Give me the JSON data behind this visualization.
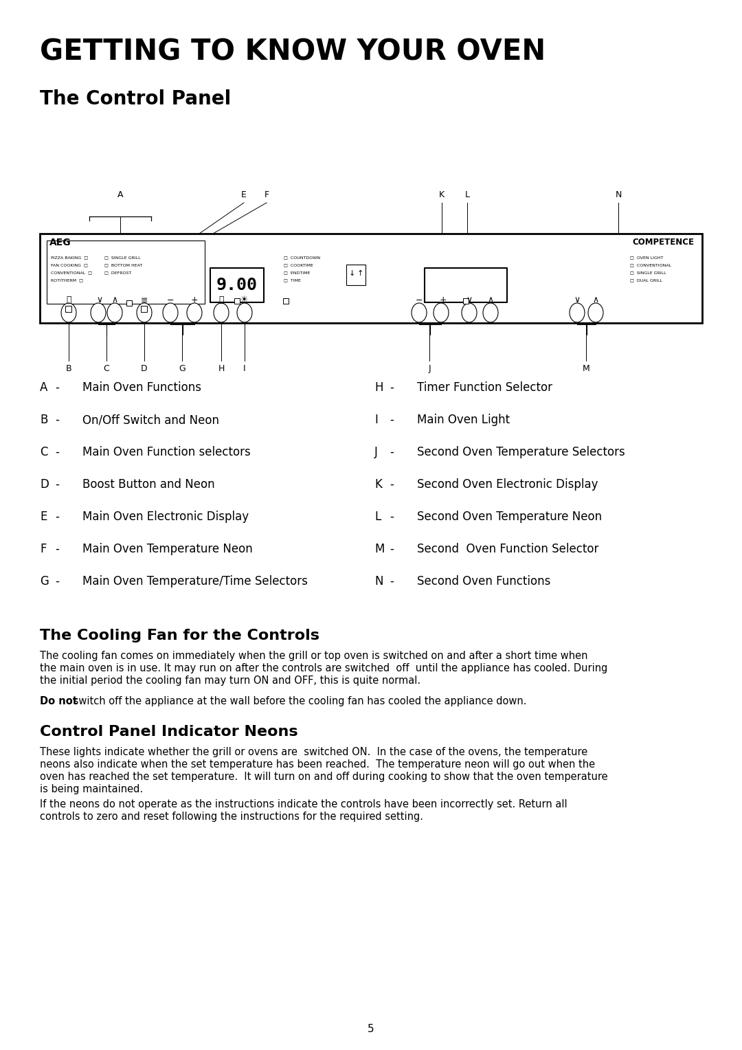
{
  "main_title": "GETTING TO KNOW YOUR OVEN",
  "subtitle": "The Control Panel",
  "bg_color": "#ffffff",
  "labels_left": [
    [
      "A",
      "-",
      "Main Oven Functions"
    ],
    [
      "B",
      "-",
      "On/Off Switch and Neon"
    ],
    [
      "C",
      "-",
      "Main Oven Function selectors"
    ],
    [
      "D",
      "-",
      "Boost Button and Neon"
    ],
    [
      "E",
      "-",
      "Main Oven Electronic Display"
    ],
    [
      "F",
      "-",
      "Main Oven Temperature Neon"
    ],
    [
      "G",
      "-",
      "Main Oven Temperature/Time Selectors"
    ]
  ],
  "labels_right": [
    [
      "H",
      "-",
      "Timer Function Selector"
    ],
    [
      "I",
      "-",
      "Main Oven Light"
    ],
    [
      "J",
      "-",
      "Second Oven Temperature Selectors"
    ],
    [
      "K",
      "-",
      "Second Oven Electronic Display"
    ],
    [
      "L",
      "-",
      "Second Oven Temperature Neon"
    ],
    [
      "M",
      "-",
      "Second  Oven Function Selector"
    ],
    [
      "N",
      "-",
      "Second Oven Functions"
    ]
  ],
  "section2_title": "The Cooling Fan for the Controls",
  "section2_body_lines": [
    "The cooling fan comes on immediately when the grill or top oven is switched on and after a short time when",
    "the main oven is in use. It may run on after the controls are switched  off  until the appliance has cooled. During",
    "the initial period the cooling fan may turn ON and OFF, this is quite normal."
  ],
  "section2_bold": "Do not",
  "section2_after_bold": " switch off the appliance at the wall before the cooling fan has cooled the appliance down.",
  "section3_title": "Control Panel Indicator Neons",
  "section3_body1_lines": [
    "These lights indicate whether the grill or ovens are  switched ON.  In the case of the ovens, the temperature",
    "neons also indicate when the set temperature has been reached.  The temperature neon will go out when the",
    "oven has reached the set temperature.  It will turn on and off during cooking to show that the oven temperature",
    "is being maintained."
  ],
  "section3_body2_lines": [
    "If the neons do not operate as the instructions indicate the controls have been incorrectly set. Return all",
    "controls to zero and reset following the instructions for the required setting."
  ],
  "page_number": "5"
}
